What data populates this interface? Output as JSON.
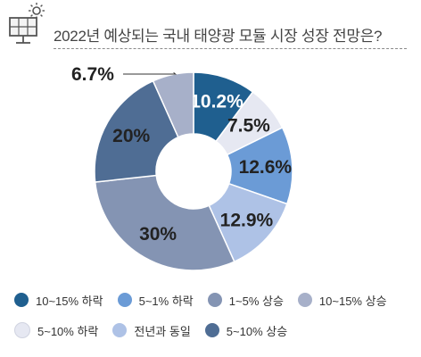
{
  "title": "2022년 예상되는 국내 태양광 모듈 시장 성장 전망은?",
  "icon": "solar-panel-icon",
  "chart_data": {
    "type": "pie",
    "donut": true,
    "title": "2022년 예상되는 국내 태양광 모듈 시장 성장 전망은?",
    "legend_position": "bottom",
    "series": [
      {
        "name": "10~15% 하락",
        "value": 10.2,
        "label": "10.2%",
        "color": "#1f5f8f",
        "label_color": "#ffffff"
      },
      {
        "name": "5~10% 하락",
        "value": 7.5,
        "label": "7.5%",
        "color": "#e6e8f2",
        "label_color": "#222222"
      },
      {
        "name": "5~1% 하락",
        "value": 12.6,
        "label": "12.6%",
        "color": "#6b9bd6",
        "label_color": "#222222"
      },
      {
        "name": "전년과 동일",
        "value": 12.9,
        "label": "12.9%",
        "color": "#aec2e6",
        "label_color": "#222222"
      },
      {
        "name": "1~5% 상승",
        "value": 30,
        "label": "30%",
        "color": "#8494b3",
        "label_color": "#222222"
      },
      {
        "name": "5~10% 상승",
        "value": 20,
        "label": "20%",
        "color": "#4f6d94",
        "label_color": "#222222"
      },
      {
        "name": "10~15% 상승",
        "value": 6.7,
        "label": "6.7%",
        "color": "#a7b0c9",
        "label_color": "#222222"
      }
    ],
    "legend_order": [
      "10~15% 하락",
      "5~1% 하락",
      "1~5% 상승",
      "10~15% 상승",
      "5~10% 하락",
      "전년과 동일",
      "5~10% 상승"
    ]
  }
}
